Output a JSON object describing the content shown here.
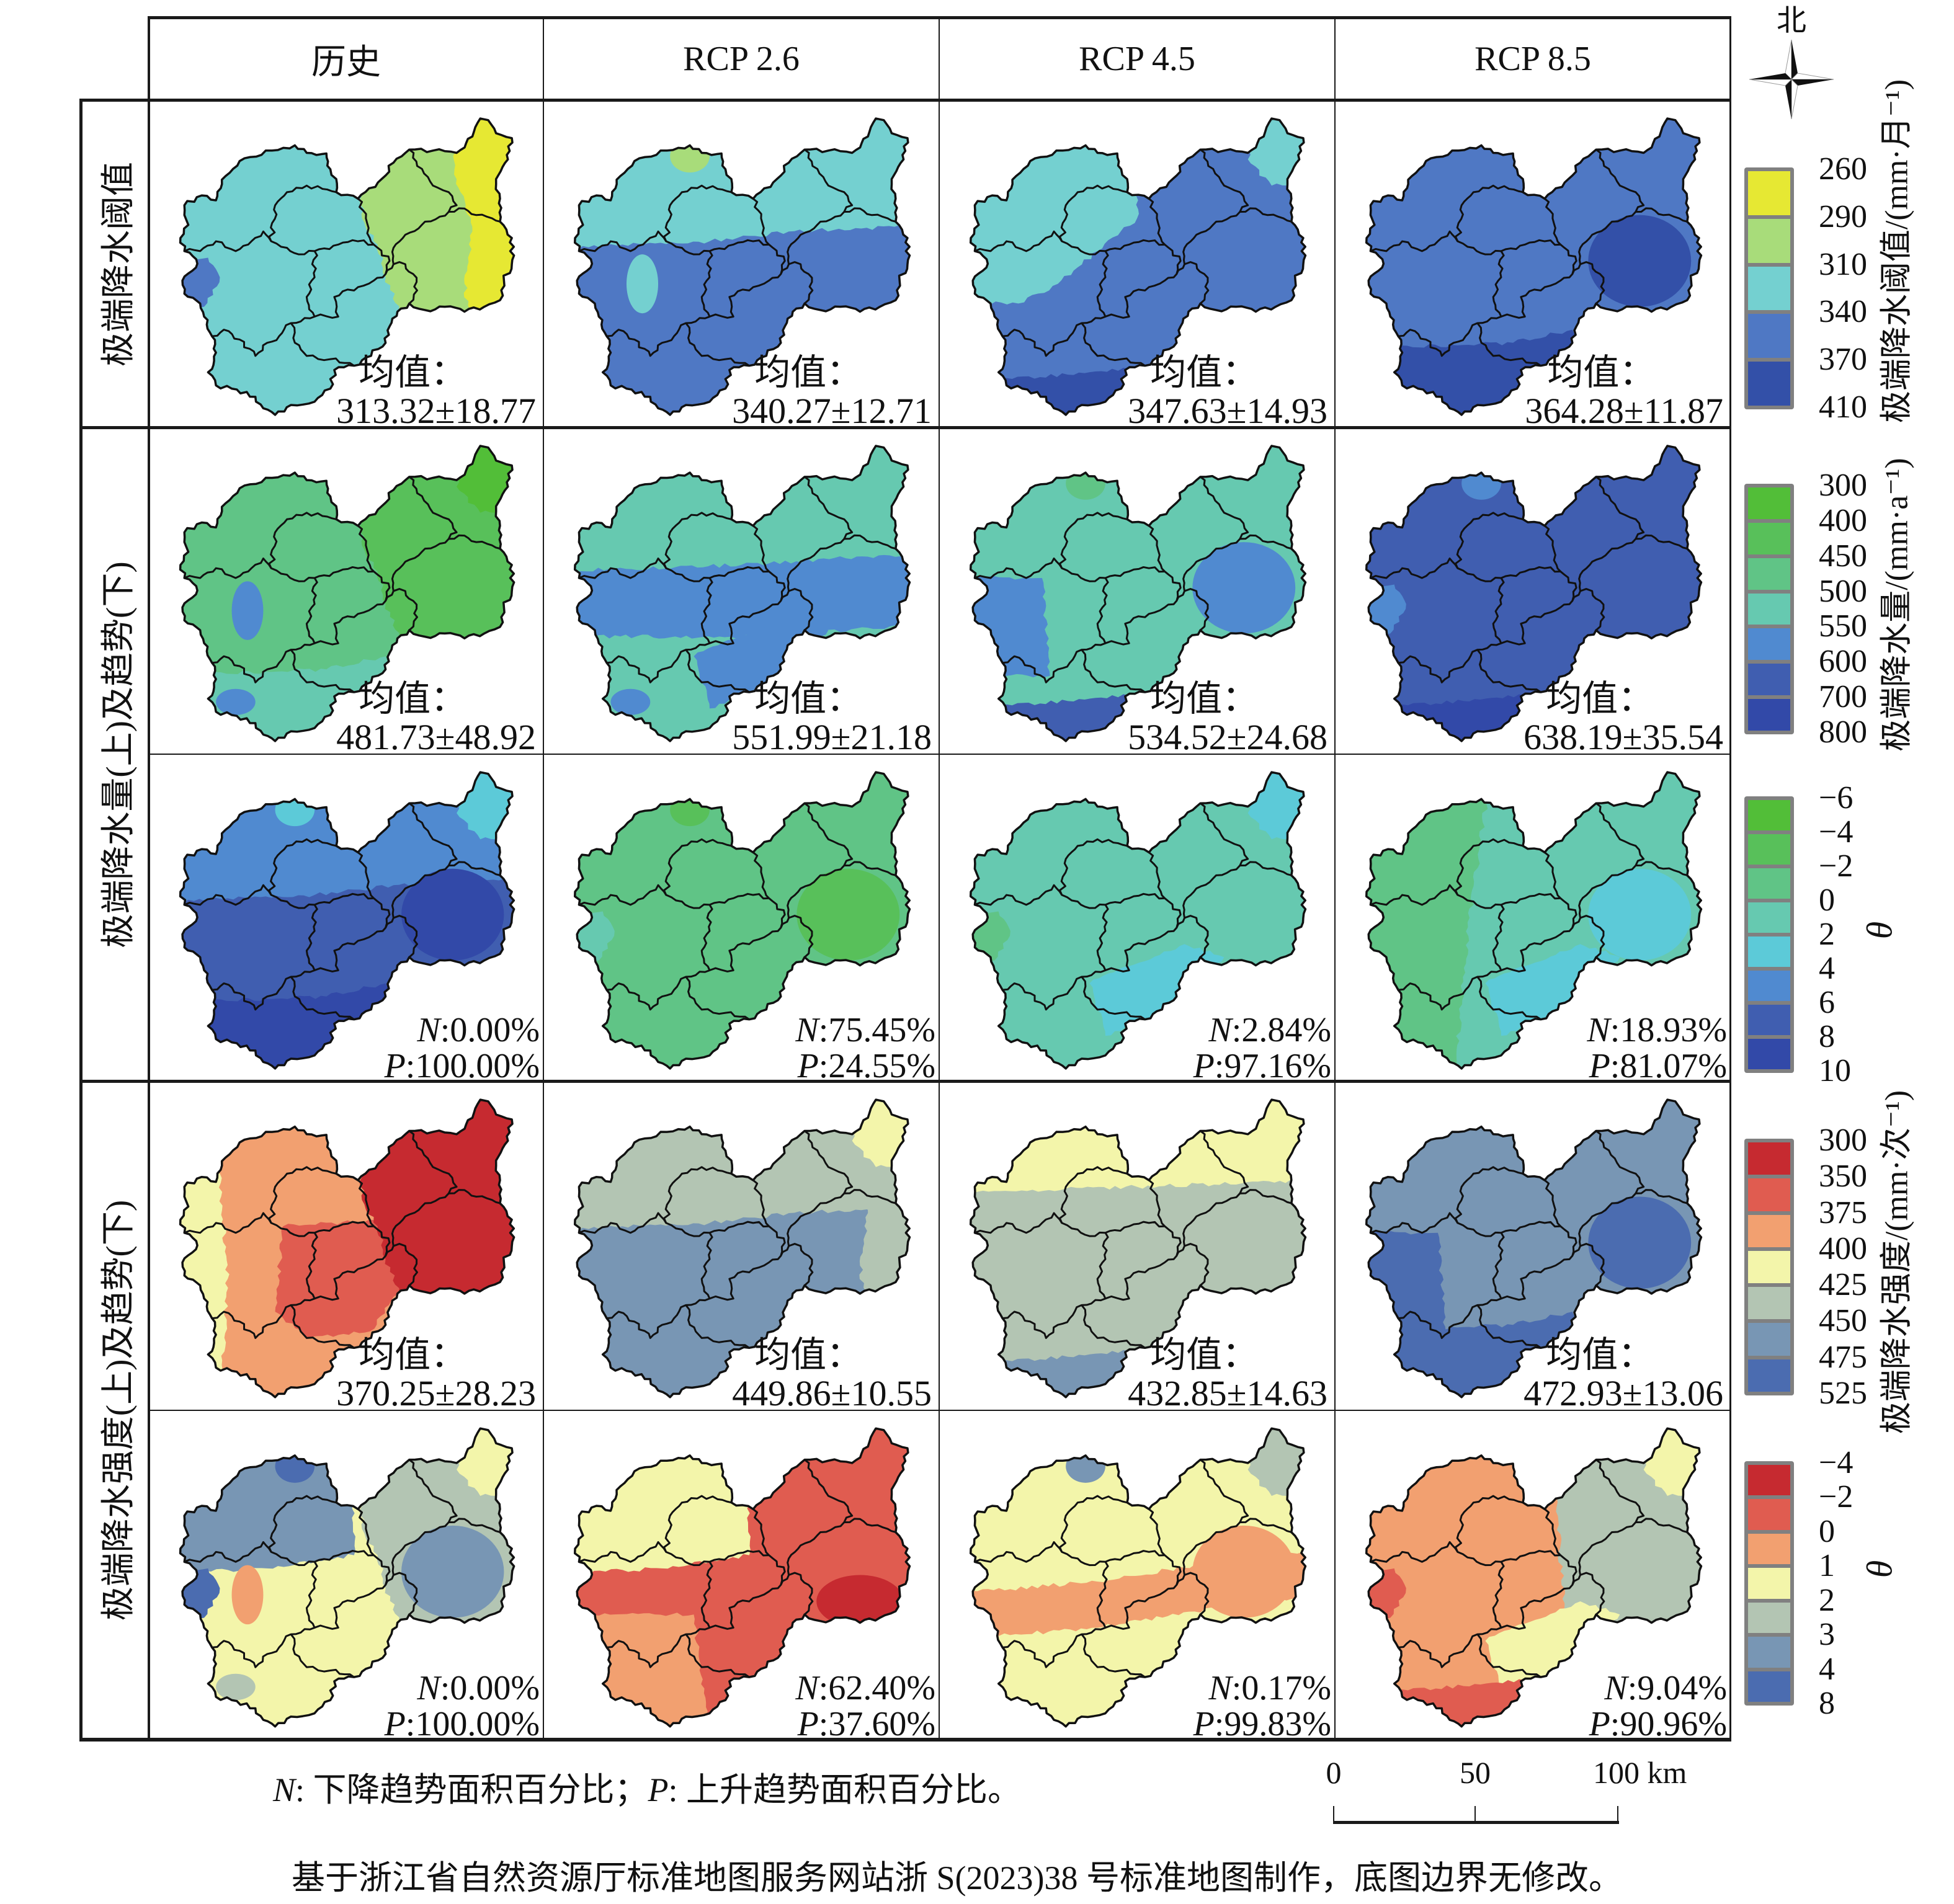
{
  "header": {
    "columns": [
      "历史",
      "RCP 2.6",
      "RCP 4.5",
      "RCP 8.5"
    ]
  },
  "compass": {
    "north_label": "北",
    "icon": "north-arrow-compass-icon"
  },
  "row_labels": [
    "极端降水阈值",
    "极端降水量(上)及趋势(下)",
    "极端降水强度(上)及趋势(下)"
  ],
  "legends": [
    {
      "kind": "value",
      "title": "极端降水阈值/(mm·月⁻¹)",
      "breaks": [
        "260",
        "290",
        "310",
        "340",
        "370",
        "410"
      ],
      "colors": [
        "#e6e833",
        "#a8dc7a",
        "#74d0d0",
        "#4f78c4",
        "#3350a8"
      ]
    },
    {
      "kind": "value",
      "title": "极端降水量/(mm·a⁻¹)",
      "breaks": [
        "300",
        "400",
        "450",
        "500",
        "550",
        "600",
        "700",
        "800"
      ],
      "colors": [
        "#52be38",
        "#58c05a",
        "#60c486",
        "#66c9b0",
        "#508ad0",
        "#405eb0",
        "#3249a8"
      ]
    },
    {
      "kind": "trend",
      "title": "θ",
      "breaks": [
        "−6",
        "−4",
        "−2",
        "0",
        "2",
        "4",
        "6",
        "8",
        "10"
      ],
      "colors": [
        "#52be38",
        "#58c05a",
        "#60c486",
        "#66c9b0",
        "#5ccad8",
        "#508ad0",
        "#405eb0",
        "#3249a8"
      ]
    },
    {
      "kind": "value",
      "title": "极端降水强度/(mm·次⁻¹)",
      "breaks": [
        "300",
        "350",
        "375",
        "400",
        "425",
        "450",
        "475",
        "525"
      ],
      "colors": [
        "#c62a30",
        "#e05c50",
        "#f2a070",
        "#f3f5aa",
        "#b3c5b3",
        "#7896b4",
        "#4b6cb0"
      ]
    },
    {
      "kind": "trend",
      "title": "θ",
      "breaks": [
        "−4",
        "−2",
        "0",
        "1",
        "2",
        "3",
        "4",
        "8"
      ],
      "colors": [
        "#c62a30",
        "#e05c50",
        "#f2a070",
        "#f3f5aa",
        "#b3c5b3",
        "#7896b4",
        "#4b6cb0"
      ]
    }
  ],
  "trend_separator": ":",
  "rows": [
    {
      "key": "threshold",
      "kind": "mean",
      "legend": 0,
      "cells": [
        {
          "scenario": "历史",
          "mean_label": "均值：",
          "mean_value": "313.32±18.77",
          "base_color": "#74d0d0",
          "zones": [
            {
              "area": "east-lobe",
              "color": "#a8dc7a"
            },
            {
              "area": "east-edge",
              "color": "#e6e833"
            },
            {
              "area": "west-patch",
              "color": "#4f78c4"
            }
          ]
        },
        {
          "scenario": "RCP 2.6",
          "mean_label": "均值：",
          "mean_value": "340.27±12.71",
          "base_color": "#4f78c4",
          "zones": [
            {
              "area": "north",
              "color": "#74d0d0"
            },
            {
              "area": "center-patch",
              "color": "#74d0d0"
            },
            {
              "area": "nw-peak",
              "color": "#a8dc7a"
            }
          ]
        },
        {
          "scenario": "RCP 4.5",
          "mean_label": "均值：",
          "mean_value": "347.63±14.93",
          "base_color": "#4f78c4",
          "zones": [
            {
              "area": "northwest-lobe",
              "color": "#74d0d0"
            },
            {
              "area": "ne-tip",
              "color": "#74d0d0"
            },
            {
              "area": "south-tip",
              "color": "#3350a8"
            }
          ]
        },
        {
          "scenario": "RCP 8.5",
          "mean_label": "均值：",
          "mean_value": "364.28±11.87",
          "base_color": "#4f78c4",
          "zones": [
            {
              "area": "east-core",
              "color": "#3350a8"
            },
            {
              "area": "south",
              "color": "#3350a8"
            }
          ]
        }
      ]
    },
    {
      "key": "amount",
      "kind": "mean",
      "legend": 1,
      "cells": [
        {
          "scenario": "历史",
          "mean_label": "均值：",
          "mean_value": "481.73±48.92",
          "base_color": "#60c486",
          "zones": [
            {
              "area": "south",
              "color": "#66c9b0"
            },
            {
              "area": "east-lobe",
              "color": "#58c05a"
            },
            {
              "area": "ne-tip",
              "color": "#52be38"
            },
            {
              "area": "center-patch",
              "color": "#508ad0"
            },
            {
              "area": "sw-patch",
              "color": "#508ad0"
            }
          ]
        },
        {
          "scenario": "RCP 2.6",
          "mean_label": "均值：",
          "mean_value": "551.99±21.18",
          "base_color": "#66c9b0",
          "zones": [
            {
              "area": "mid-band",
              "color": "#508ad0"
            },
            {
              "area": "southeast-band",
              "color": "#508ad0"
            },
            {
              "area": "sw-patch",
              "color": "#508ad0"
            }
          ]
        },
        {
          "scenario": "RCP 4.5",
          "mean_label": "均值：",
          "mean_value": "534.52±24.68",
          "base_color": "#66c9b0",
          "zones": [
            {
              "area": "nw-peak",
              "color": "#60c486"
            },
            {
              "area": "east-core",
              "color": "#508ad0"
            },
            {
              "area": "west-mid",
              "color": "#508ad0"
            },
            {
              "area": "south-tip",
              "color": "#405eb0"
            }
          ]
        },
        {
          "scenario": "RCP 8.5",
          "mean_label": "均值：",
          "mean_value": "638.19±35.54",
          "base_color": "#405eb0",
          "zones": [
            {
              "area": "nw-peak",
              "color": "#508ad0"
            },
            {
              "area": "west-patch",
              "color": "#508ad0"
            },
            {
              "area": "south-tip",
              "color": "#3249a8"
            }
          ]
        }
      ]
    },
    {
      "key": "amount-trend",
      "kind": "trend",
      "legend": 2,
      "cells": [
        {
          "scenario": "历史",
          "n_symbol": "N",
          "n_value": "0.00%",
          "p_symbol": "P",
          "p_value": "100.00%",
          "base_color": "#405eb0",
          "zones": [
            {
              "area": "north",
              "color": "#508ad0"
            },
            {
              "area": "ne-tip",
              "color": "#5ccad8"
            },
            {
              "area": "nw-peak",
              "color": "#5ccad8"
            },
            {
              "area": "east-core",
              "color": "#3249a8"
            },
            {
              "area": "south",
              "color": "#3249a8"
            }
          ]
        },
        {
          "scenario": "RCP 2.6",
          "n_symbol": "N",
          "n_value": "75.45%",
          "p_symbol": "P",
          "p_value": "24.55%",
          "base_color": "#60c486",
          "zones": [
            {
              "area": "east-core",
              "color": "#58c05a"
            },
            {
              "area": "nw-peak",
              "color": "#58c05a"
            },
            {
              "area": "west-patch",
              "color": "#66c9b0"
            }
          ]
        },
        {
          "scenario": "RCP 4.5",
          "n_symbol": "N",
          "n_value": "2.84%",
          "p_symbol": "P",
          "p_value": "97.16%",
          "base_color": "#66c9b0",
          "zones": [
            {
              "area": "southeast-band",
              "color": "#5ccad8"
            },
            {
              "area": "ne-tip",
              "color": "#5ccad8"
            },
            {
              "area": "west-patch",
              "color": "#60c486"
            }
          ]
        },
        {
          "scenario": "RCP 8.5",
          "n_symbol": "N",
          "n_value": "18.93%",
          "p_symbol": "P",
          "p_value": "81.07%",
          "base_color": "#66c9b0",
          "zones": [
            {
              "area": "west-half",
              "color": "#60c486"
            },
            {
              "area": "east-core",
              "color": "#5ccad8"
            },
            {
              "area": "southeast-band",
              "color": "#5ccad8"
            }
          ]
        }
      ]
    },
    {
      "key": "intensity",
      "kind": "mean",
      "legend": 3,
      "cells": [
        {
          "scenario": "历史",
          "mean_label": "均值：",
          "mean_value": "370.25±28.23",
          "base_color": "#f2a070",
          "zones": [
            {
              "area": "west-edge",
              "color": "#f3f5aa"
            },
            {
              "area": "central",
              "color": "#e05c50"
            },
            {
              "area": "east-lobe",
              "color": "#c62a30"
            }
          ]
        },
        {
          "scenario": "RCP 2.6",
          "mean_label": "均值：",
          "mean_value": "449.86±10.55",
          "base_color": "#7896b4",
          "zones": [
            {
              "area": "north",
              "color": "#b3c5b3"
            },
            {
              "area": "east-edge",
              "color": "#b3c5b3"
            },
            {
              "area": "ne-tip",
              "color": "#f3f5aa"
            }
          ]
        },
        {
          "scenario": "RCP 4.5",
          "mean_label": "均值：",
          "mean_value": "432.85±14.63",
          "base_color": "#b3c5b3",
          "zones": [
            {
              "area": "north-strip",
              "color": "#f3f5aa"
            },
            {
              "area": "south-tip",
              "color": "#7896b4"
            }
          ]
        },
        {
          "scenario": "RCP 8.5",
          "mean_label": "均值：",
          "mean_value": "472.93±13.06",
          "base_color": "#7896b4",
          "zones": [
            {
              "area": "west-mid",
              "color": "#4b6cb0"
            },
            {
              "area": "east-core",
              "color": "#4b6cb0"
            },
            {
              "area": "south",
              "color": "#4b6cb0"
            }
          ]
        }
      ]
    },
    {
      "key": "intensity-trend",
      "kind": "trend",
      "legend": 4,
      "cells": [
        {
          "scenario": "历史",
          "n_symbol": "N",
          "n_value": "0.00%",
          "p_symbol": "P",
          "p_value": "100.00%",
          "base_color": "#f3f5aa",
          "zones": [
            {
              "area": "northwest",
              "color": "#7896b4"
            },
            {
              "area": "west-patch",
              "color": "#4b6cb0"
            },
            {
              "area": "nw-peak",
              "color": "#4b6cb0"
            },
            {
              "area": "east-lobe",
              "color": "#b3c5b3"
            },
            {
              "area": "east-core",
              "color": "#7896b4"
            },
            {
              "area": "center-patch",
              "color": "#f2a070"
            },
            {
              "area": "ne-tip",
              "color": "#f3f5aa"
            },
            {
              "area": "sw-patch",
              "color": "#b3c5b3"
            }
          ]
        },
        {
          "scenario": "RCP 2.6",
          "n_symbol": "N",
          "n_value": "62.40%",
          "p_symbol": "P",
          "p_value": "37.60%",
          "base_color": "#e05c50",
          "zones": [
            {
              "area": "northwest",
              "color": "#f3f5aa"
            },
            {
              "area": "southwest",
              "color": "#f2a070"
            },
            {
              "area": "east-bottom",
              "color": "#c62a30"
            }
          ]
        },
        {
          "scenario": "RCP 4.5",
          "n_symbol": "N",
          "n_value": "0.17%",
          "p_symbol": "P",
          "p_value": "99.83%",
          "base_color": "#f3f5aa",
          "zones": [
            {
              "area": "center-band",
              "color": "#f2a070"
            },
            {
              "area": "east-core",
              "color": "#f2a070"
            },
            {
              "area": "nw-peak",
              "color": "#7896b4"
            },
            {
              "area": "ne-tip",
              "color": "#b3c5b3"
            }
          ]
        },
        {
          "scenario": "RCP 8.5",
          "n_symbol": "N",
          "n_value": "9.04%",
          "p_symbol": "P",
          "p_value": "90.96%",
          "base_color": "#f2a070",
          "zones": [
            {
              "area": "east-half",
              "color": "#b3c5b3"
            },
            {
              "area": "ne-tip",
              "color": "#f3f5aa"
            },
            {
              "area": "southeast-band",
              "color": "#f3f5aa"
            },
            {
              "area": "south-tip",
              "color": "#e05c50"
            },
            {
              "area": "west-patch",
              "color": "#e05c50"
            }
          ]
        }
      ]
    }
  ],
  "note": {
    "n_symbol": "N",
    "n_text": ": 下降趋势面积百分比；",
    "p_symbol": "P",
    "p_text": ": 上升趋势面积百分比。"
  },
  "scale_bar": {
    "labels": [
      "0",
      "50",
      "100 km"
    ]
  },
  "footer": "基于浙江省自然资源厅标准地图服务网站浙 S(2023)38 号标准地图制作，底图边界无修改。"
}
